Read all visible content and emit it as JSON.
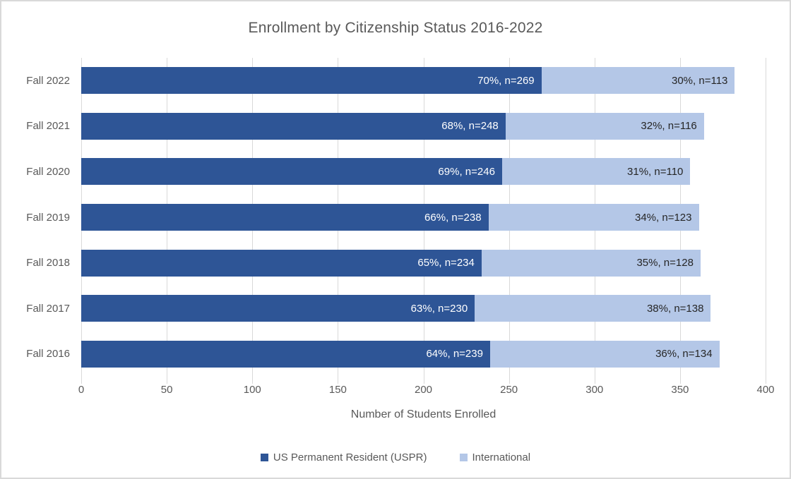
{
  "chart_data": {
    "type": "bar",
    "orientation": "horizontal",
    "stacked": true,
    "title": "Enrollment by Citizenship Status 2016-2022",
    "xlabel": "Number of Students Enrolled",
    "xlim": [
      0,
      400
    ],
    "xticks": [
      0,
      50,
      100,
      150,
      200,
      250,
      300,
      350,
      400
    ],
    "grid": true,
    "legend_position": "bottom",
    "categories": [
      "Fall 2022",
      "Fall 2021",
      "Fall 2020",
      "Fall 2019",
      "Fall 2018",
      "Fall 2017",
      "Fall 2016"
    ],
    "series": [
      {
        "name": "US Permanent Resident (USPR)",
        "color": "#2E5596",
        "label_color": "#FFFFFF",
        "values": [
          269,
          248,
          246,
          238,
          234,
          230,
          239
        ],
        "labels": [
          "70%, n=269",
          "68%, n=248",
          "69%, n=246",
          "66%, n=238",
          "65%, n=234",
          "63%, n=230",
          "64%, n=239"
        ]
      },
      {
        "name": "International",
        "color": "#B4C7E7",
        "label_color": "#262626",
        "values": [
          113,
          116,
          110,
          123,
          128,
          138,
          134
        ],
        "labels": [
          "30%, n=113",
          "32%, n=116",
          "31%, n=110",
          "34%, n=123",
          "35%, n=128",
          "38%, n=138",
          "36%, n=134"
        ]
      }
    ]
  },
  "colors": {
    "title_text": "#595959",
    "axis_text": "#595959",
    "gridline": "#D9D9D9",
    "chart_border": "#D9D9D9",
    "background": "#FFFFFF"
  }
}
